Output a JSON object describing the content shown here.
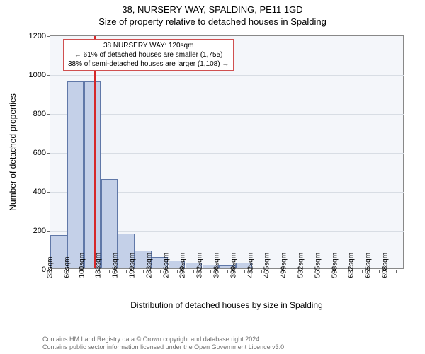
{
  "title_line1": "38, NURSERY WAY, SPALDING, PE11 1GD",
  "title_line2": "Size of property relative to detached houses in Spalding",
  "chart": {
    "type": "histogram",
    "ylabel": "Number of detached properties",
    "xlabel": "Distribution of detached houses by size in Spalding",
    "ylim": [
      0,
      1200
    ],
    "ytick_step": 200,
    "background_color": "#f4f6fa",
    "grid_color": "#d8dde4",
    "bar_fill": "#c4d0e8",
    "bar_border": "#6078a8",
    "marker_color": "#d62728",
    "marker_x_index": 2.1,
    "x_labels": [
      "33sqm",
      "66sqm",
      "100sqm",
      "133sqm",
      "166sqm",
      "199sqm",
      "233sqm",
      "266sqm",
      "299sqm",
      "332sqm",
      "366sqm",
      "399sqm",
      "432sqm",
      "465sqm",
      "499sqm",
      "532sqm",
      "565sqm",
      "598sqm",
      "632sqm",
      "665sqm",
      "698sqm"
    ],
    "values": [
      170,
      960,
      960,
      460,
      180,
      90,
      60,
      40,
      30,
      20,
      15,
      30,
      0,
      0,
      0,
      0,
      0,
      0,
      0,
      0,
      0
    ]
  },
  "info_box": {
    "line1": "38 NURSERY WAY: 120sqm",
    "line2": "← 61% of detached houses are smaller (1,755)",
    "line3": "38% of semi-detached houses are larger (1,108) →",
    "border_color": "#d05050"
  },
  "footer": {
    "line1": "Contains HM Land Registry data © Crown copyright and database right 2024.",
    "line2": "Contains public sector information licensed under the Open Government Licence v3.0."
  }
}
